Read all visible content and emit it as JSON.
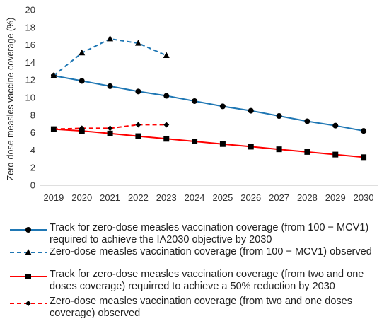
{
  "chart_data": {
    "type": "line",
    "ylabel": "Zero-dose measles vaccine coverage (%)",
    "xlabel": "",
    "ylim": [
      0,
      20
    ],
    "yticks": [
      0,
      2,
      4,
      6,
      8,
      10,
      12,
      14,
      16,
      18,
      20
    ],
    "x": [
      "2019",
      "2020",
      "2021",
      "2022",
      "2023",
      "2024",
      "2025",
      "2026",
      "2027",
      "2028",
      "2029",
      "2030"
    ],
    "grid": false,
    "legend_position": "bottom",
    "series": [
      {
        "name": "Track for zero-dose measles vaccination coverage (from 100 − MCV1) required to achieve the IA2030 objective by 2030",
        "color": "#1f77b4",
        "dash": "solid",
        "marker": "circle",
        "values": [
          12.5,
          11.9,
          11.3,
          10.7,
          10.2,
          9.6,
          9.0,
          8.5,
          7.9,
          7.3,
          6.8,
          6.2
        ]
      },
      {
        "name": "Zero-dose measles vaccination coverage (from 100 − MCV1) observed",
        "color": "#1f77b4",
        "dash": "dashed",
        "marker": "triangle",
        "values": [
          12.5,
          15.1,
          16.7,
          16.2,
          14.8,
          null,
          null,
          null,
          null,
          null,
          null,
          null
        ]
      },
      {
        "name": "Track for zero-dose measles vaccination coverage (from two and one doses coverage) requirred to achieve a 50% reduction by 2030",
        "color": "#ff0000",
        "dash": "solid",
        "marker": "square",
        "values": [
          6.4,
          6.2,
          5.9,
          5.6,
          5.3,
          5.0,
          4.7,
          4.4,
          4.1,
          3.8,
          3.5,
          3.2
        ]
      },
      {
        "name": "Zero-dose measles vaccination coverage (from two and one doses coverage) observed",
        "color": "#ff0000",
        "dash": "dashed",
        "marker": "diamond",
        "values": [
          6.4,
          6.5,
          6.5,
          6.9,
          6.9,
          null,
          null,
          null,
          null,
          null,
          null,
          null
        ]
      }
    ]
  }
}
